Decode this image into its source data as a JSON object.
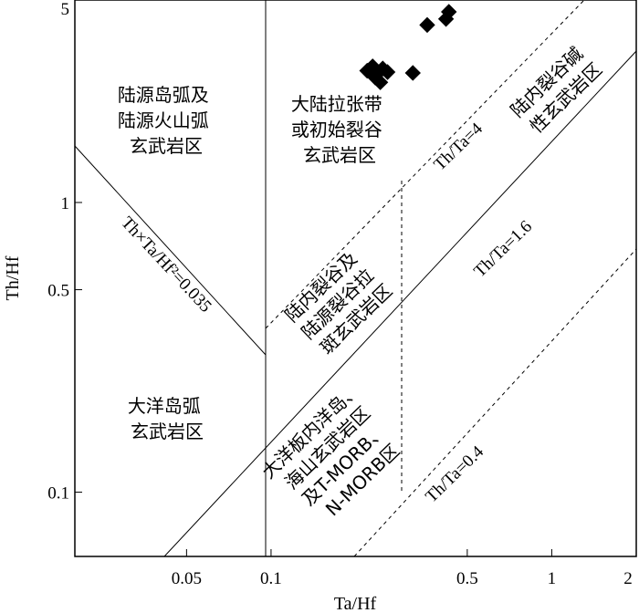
{
  "chart_data": {
    "type": "scatter",
    "xlabel": "Ta/Hf",
    "ylabel": "Th/Hf",
    "x_scale": "log",
    "y_scale": "log",
    "xlim": [
      0.02,
      2
    ],
    "ylim": [
      0.06,
      5
    ],
    "x_ticks": [
      {
        "value": 0.05,
        "label": "0.05"
      },
      {
        "value": 0.1,
        "label": "0.1"
      },
      {
        "value": 0.5,
        "label": "0.5"
      },
      {
        "value": 1,
        "label": "1"
      },
      {
        "value": 2,
        "label": "2"
      }
    ],
    "y_ticks": [
      {
        "value": 0.1,
        "label": "0.1"
      },
      {
        "value": 0.5,
        "label": "0.5"
      },
      {
        "value": 1,
        "label": "1"
      },
      {
        "value": 5,
        "label": "5"
      }
    ],
    "series": [
      {
        "marker": "diamond",
        "color": "#000000",
        "points": [
          {
            "x": 0.22,
            "y": 2.85
          },
          {
            "x": 0.23,
            "y": 2.95
          },
          {
            "x": 0.235,
            "y": 2.7
          },
          {
            "x": 0.24,
            "y": 2.8
          },
          {
            "x": 0.245,
            "y": 2.6
          },
          {
            "x": 0.25,
            "y": 2.9
          },
          {
            "x": 0.26,
            "y": 2.82
          },
          {
            "x": 0.32,
            "y": 2.8
          },
          {
            "x": 0.36,
            "y": 4.1
          },
          {
            "x": 0.42,
            "y": 4.3
          },
          {
            "x": 0.43,
            "y": 4.55
          }
        ]
      }
    ],
    "regions": [
      {
        "id": "arc-continental",
        "lines": [
          "陆源岛弧及",
          "陆源火山弧",
          "玄武岩区"
        ]
      },
      {
        "id": "continental-rift",
        "lines": [
          "大陆拉张带",
          "或初始裂谷",
          "玄武岩区"
        ]
      },
      {
        "id": "intra-rift-alkaline",
        "lines": [
          "陆内裂谷碱",
          "性玄武岩区"
        ]
      },
      {
        "id": "ocean-arc",
        "lines": [
          "大洋岛弧",
          "玄武岩区"
        ]
      },
      {
        "id": "intra-rift-tholeiite",
        "lines": [
          "陆内裂谷及",
          "陆源裂谷拉",
          "斑玄武岩区"
        ]
      },
      {
        "id": "ocean-plate",
        "lines": [
          "大洋板内洋岛、",
          "海山玄武岩区",
          "及T-MORB、",
          "N-MORB区"
        ]
      }
    ],
    "line_labels": {
      "th_ta_4": "Th/Ta=4",
      "th_ta_16": "Th/Ta=1.6",
      "th_ta_04": "Th/Ta=0.4",
      "product": "Th×Ta/Hf²=0.035"
    }
  }
}
